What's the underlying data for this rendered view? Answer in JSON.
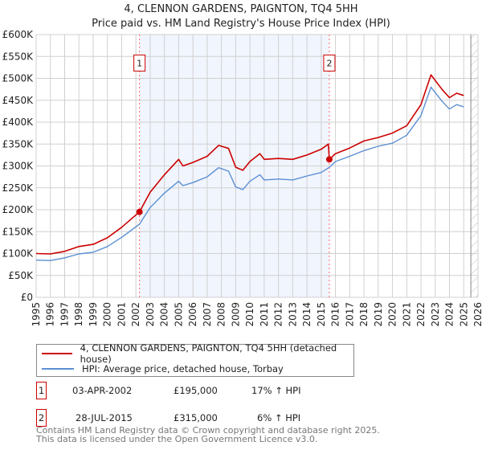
{
  "title": "4, CLENNON GARDENS, PAIGNTON, TQ4 5HH",
  "subtitle": "Price paid vs. HM Land Registry's House Price Index (HPI)",
  "chart_data": {
    "type": "line",
    "title": "4, CLENNON GARDENS, PAIGNTON, TQ4 5HH",
    "subtitle": "Price paid vs. HM Land Registry's House Price Index (HPI)",
    "xlim": [
      1995,
      2026
    ],
    "ylim": [
      0,
      600000
    ],
    "grid": true,
    "x_ticks": [
      "1995",
      "1996",
      "1997",
      "1998",
      "1999",
      "2000",
      "2001",
      "2002",
      "2003",
      "2004",
      "2005",
      "2006",
      "2007",
      "2008",
      "2009",
      "2010",
      "2011",
      "2012",
      "2013",
      "2014",
      "2015",
      "2016",
      "2017",
      "2018",
      "2019",
      "2020",
      "2021",
      "2022",
      "2023",
      "2024",
      "2025",
      "2026"
    ],
    "y_ticks": [
      {
        "v": 0,
        "label": "£0"
      },
      {
        "v": 50000,
        "label": "£50K"
      },
      {
        "v": 100000,
        "label": "£100K"
      },
      {
        "v": 150000,
        "label": "£150K"
      },
      {
        "v": 200000,
        "label": "£200K"
      },
      {
        "v": 250000,
        "label": "£250K"
      },
      {
        "v": 300000,
        "label": "£300K"
      },
      {
        "v": 350000,
        "label": "£350K"
      },
      {
        "v": 400000,
        "label": "£400K"
      },
      {
        "v": 450000,
        "label": "£450K"
      },
      {
        "v": 500000,
        "label": "£500K"
      },
      {
        "v": 550000,
        "label": "£550K"
      },
      {
        "v": 600000,
        "label": "£600K"
      }
    ],
    "shaded_range": [
      2002.25,
      2015.57
    ],
    "forecast_from": 2025.5,
    "series": [
      {
        "name": "4, CLENNON GARDENS, PAIGNTON, TQ4 5HH (detached house)",
        "color": "#cc0000",
        "x": [
          1995,
          1996,
          1997,
          1998,
          1999,
          2000,
          2001,
          2002.25,
          2003,
          2004,
          2005,
          2005.3,
          2006,
          2007,
          2007.8,
          2008.5,
          2009,
          2009.5,
          2010,
          2010.7,
          2011,
          2012,
          2013,
          2014,
          2015,
          2015.5,
          2015.57,
          2016,
          2017,
          2018,
          2019,
          2020,
          2021,
          2022,
          2022.7,
          2023.5,
          2024,
          2024.5,
          2025
        ],
        "y": [
          100000,
          99000,
          105000,
          116000,
          121000,
          136000,
          160000,
          195000,
          240000,
          280000,
          315000,
          300000,
          308000,
          322000,
          347000,
          340000,
          297000,
          290000,
          310000,
          328000,
          315000,
          317000,
          315000,
          325000,
          338000,
          350000,
          315000,
          328000,
          341000,
          357000,
          365000,
          375000,
          392000,
          440000,
          508000,
          474000,
          456000,
          466000,
          461000
        ]
      },
      {
        "name": "HPI: Average price, detached house, Torbay",
        "color": "#5b8fd4",
        "x": [
          1995,
          1996,
          1997,
          1998,
          1999,
          2000,
          2001,
          2002.25,
          2003,
          2004,
          2005,
          2005.3,
          2006,
          2007,
          2007.8,
          2008.5,
          2009,
          2009.5,
          2010,
          2010.7,
          2011,
          2012,
          2013,
          2014,
          2015,
          2015.57,
          2016,
          2017,
          2018,
          2019,
          2020,
          2021,
          2022,
          2022.7,
          2023.5,
          2024,
          2024.5,
          2025
        ],
        "y": [
          85000,
          84000,
          90000,
          99000,
          103000,
          116000,
          137000,
          167000,
          205000,
          238000,
          265000,
          255000,
          262000,
          275000,
          296000,
          288000,
          252000,
          246000,
          265000,
          280000,
          268000,
          270000,
          268000,
          277000,
          285000,
          297000,
          310000,
          322000,
          335000,
          345000,
          352000,
          370000,
          415000,
          480000,
          447000,
          430000,
          440000,
          435000
        ]
      }
    ],
    "sales": [
      {
        "id": "1",
        "x": 2002.25,
        "y": 195000
      },
      {
        "id": "2",
        "x": 2015.57,
        "y": 315000
      }
    ]
  },
  "legend": {
    "property": "4, CLENNON GARDENS, PAIGNTON, TQ4 5HH (detached house)",
    "hpi": "HPI: Average price, detached house, Torbay"
  },
  "transactions": [
    {
      "id": "1",
      "date": "03-APR-2002",
      "price": "£195,000",
      "hpi": "17% ↑ HPI"
    },
    {
      "id": "2",
      "date": "28-JUL-2015",
      "price": "£315,000",
      "hpi": "6% ↑ HPI"
    }
  ],
  "footer": {
    "line1": "Contains HM Land Registry data © Crown copyright and database right 2025.",
    "line2": "This data is licensed under the Open Government Licence v3.0."
  }
}
